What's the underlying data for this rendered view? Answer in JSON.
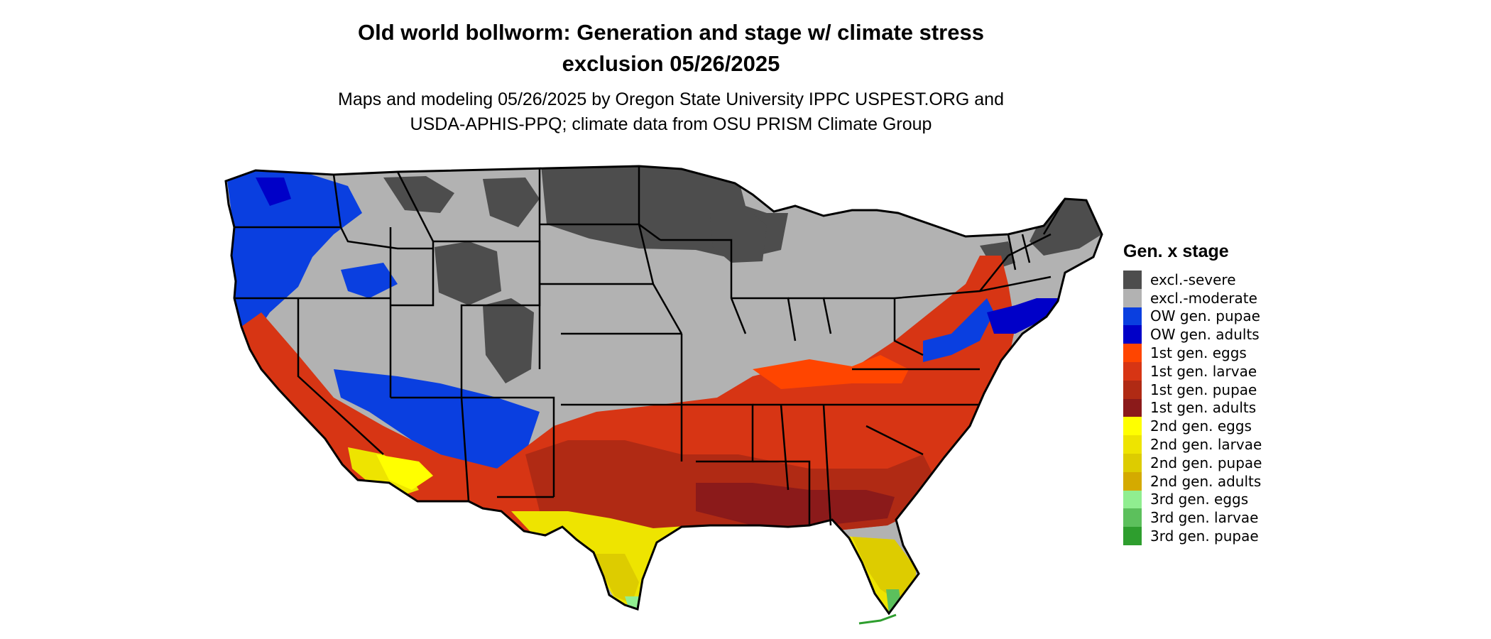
{
  "title_line1": "Old world bollworm: Generation and stage w/ climate stress",
  "title_line2": "exclusion 05/26/2025",
  "subtitle_line1": "Maps and modeling 05/26/2025 by Oregon State University IPPC USPEST.ORG and",
  "subtitle_line2": "USDA-APHIS-PPQ; climate data from OSU PRISM Climate Group",
  "legend": {
    "title": "Gen. x stage",
    "items": [
      {
        "label": "excl.-severe",
        "color": "#4d4d4d"
      },
      {
        "label": "excl.-moderate",
        "color": "#b2b2b2"
      },
      {
        "label": "OW gen. pupae",
        "color": "#0a3fe0"
      },
      {
        "label": "OW gen. adults",
        "color": "#0000c8"
      },
      {
        "label": "1st gen. eggs",
        "color": "#ff4500"
      },
      {
        "label": "1st gen. larvae",
        "color": "#d73514"
      },
      {
        "label": "1st gen. pupae",
        "color": "#b02a14"
      },
      {
        "label": "1st gen. adults",
        "color": "#8b1a1a"
      },
      {
        "label": "2nd gen. eggs",
        "color": "#ffff00"
      },
      {
        "label": "2nd gen. larvae",
        "color": "#eee400"
      },
      {
        "label": "2nd gen. pupae",
        "color": "#ddcc00"
      },
      {
        "label": "2nd gen. adults",
        "color": "#d4aa00"
      },
      {
        "label": "3rd gen. eggs",
        "color": "#90ee90"
      },
      {
        "label": "3rd gen. larvae",
        "color": "#5cc05c"
      },
      {
        "label": "3rd gen. pupae",
        "color": "#2e9e2e"
      }
    ]
  }
}
